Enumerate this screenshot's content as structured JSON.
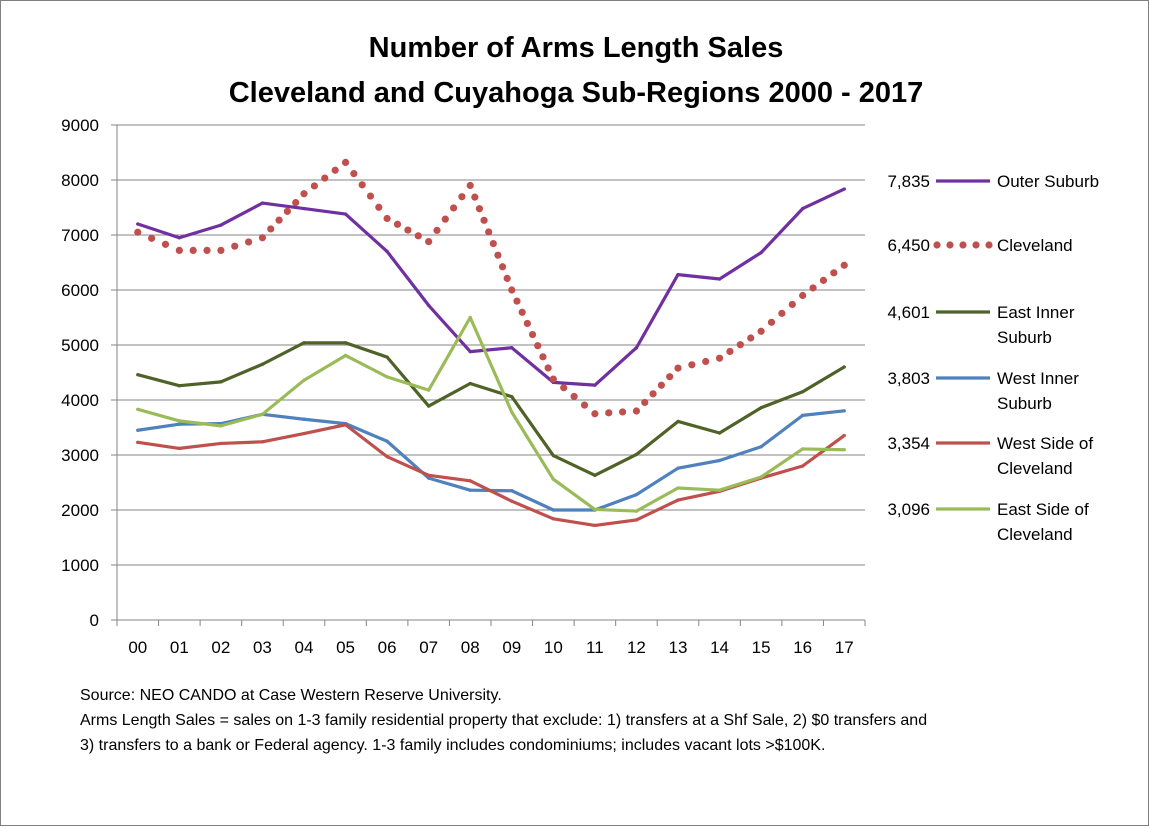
{
  "chart_data": {
    "type": "line",
    "title": [
      "Number of Arms Length Sales",
      "Cleveland and Cuyahoga Sub-Regions 2000 - 2017"
    ],
    "xlabel": "",
    "ylabel": "",
    "ylim": [
      0,
      9000
    ],
    "yticks": [
      "0",
      "1000",
      "2000",
      "3000",
      "4000",
      "5000",
      "6000",
      "7000",
      "8000",
      "9000"
    ],
    "categories": [
      "00",
      "01",
      "02",
      "03",
      "04",
      "05",
      "06",
      "07",
      "08",
      "09",
      "10",
      "11",
      "12",
      "13",
      "14",
      "15",
      "16",
      "17"
    ],
    "grid": true,
    "legend_placement": "right",
    "series": [
      {
        "name": "Outer Suburb",
        "name_lines": [
          "Outer Suburb"
        ],
        "end_label": "7,835",
        "color": "#7030a0",
        "style": "solid",
        "values": [
          7200,
          6950,
          7180,
          7580,
          7480,
          7380,
          6700,
          5720,
          4880,
          4950,
          4320,
          4270,
          4950,
          6280,
          6200,
          6680,
          7480,
          7835
        ]
      },
      {
        "name": "Cleveland",
        "name_lines": [
          "Cleveland"
        ],
        "end_label": "6,450",
        "color": "#c0504d",
        "style": "dotted",
        "values": [
          7050,
          6720,
          6720,
          6950,
          7750,
          8320,
          7300,
          6880,
          7900,
          6000,
          4380,
          3750,
          3800,
          4580,
          4760,
          5250,
          5900,
          6450
        ]
      },
      {
        "name": "East Inner Suburb",
        "name_lines": [
          "East Inner",
          "Suburb"
        ],
        "end_label": "4,601",
        "color": "#4f6228",
        "style": "solid",
        "values": [
          4460,
          4260,
          4330,
          4650,
          5040,
          5040,
          4780,
          3890,
          4300,
          4060,
          2990,
          2630,
          3010,
          3610,
          3400,
          3860,
          4150,
          4601
        ]
      },
      {
        "name": "West Inner Suburb",
        "name_lines": [
          "West Inner",
          "Suburb"
        ],
        "end_label": "3,803",
        "color": "#4f81bd",
        "style": "solid",
        "values": [
          3450,
          3560,
          3570,
          3740,
          3650,
          3570,
          3250,
          2580,
          2360,
          2350,
          2000,
          2000,
          2280,
          2760,
          2900,
          3150,
          3720,
          3803
        ]
      },
      {
        "name": "West Side of Cleveland",
        "name_lines": [
          "West Side of",
          "Cleveland"
        ],
        "end_label": "3,354",
        "color": "#c0504d",
        "style": "solid",
        "values": [
          3230,
          3120,
          3210,
          3240,
          3390,
          3550,
          2970,
          2630,
          2530,
          2160,
          1840,
          1720,
          1820,
          2180,
          2340,
          2580,
          2800,
          3354
        ]
      },
      {
        "name": "East Side of Cleveland",
        "name_lines": [
          "East Side of",
          "Cleveland"
        ],
        "end_label": "3,096",
        "color": "#9bbb59",
        "style": "solid",
        "values": [
          3830,
          3620,
          3530,
          3740,
          4360,
          4810,
          4420,
          4180,
          5500,
          3780,
          2560,
          2010,
          1980,
          2400,
          2360,
          2600,
          3110,
          3096
        ]
      }
    ]
  },
  "notes": {
    "source": "Source:  NEO CANDO at Case Western Reserve  University.",
    "def_line1": "Arms Length Sales = sales on 1-3 family residential property that exclude: 1) transfers at a Shf Sale, 2) $0 transfers and",
    "def_line2": "3) transfers to a bank or Federal agency.  1-3 family includes condominiums; includes vacant lots >$100K."
  }
}
